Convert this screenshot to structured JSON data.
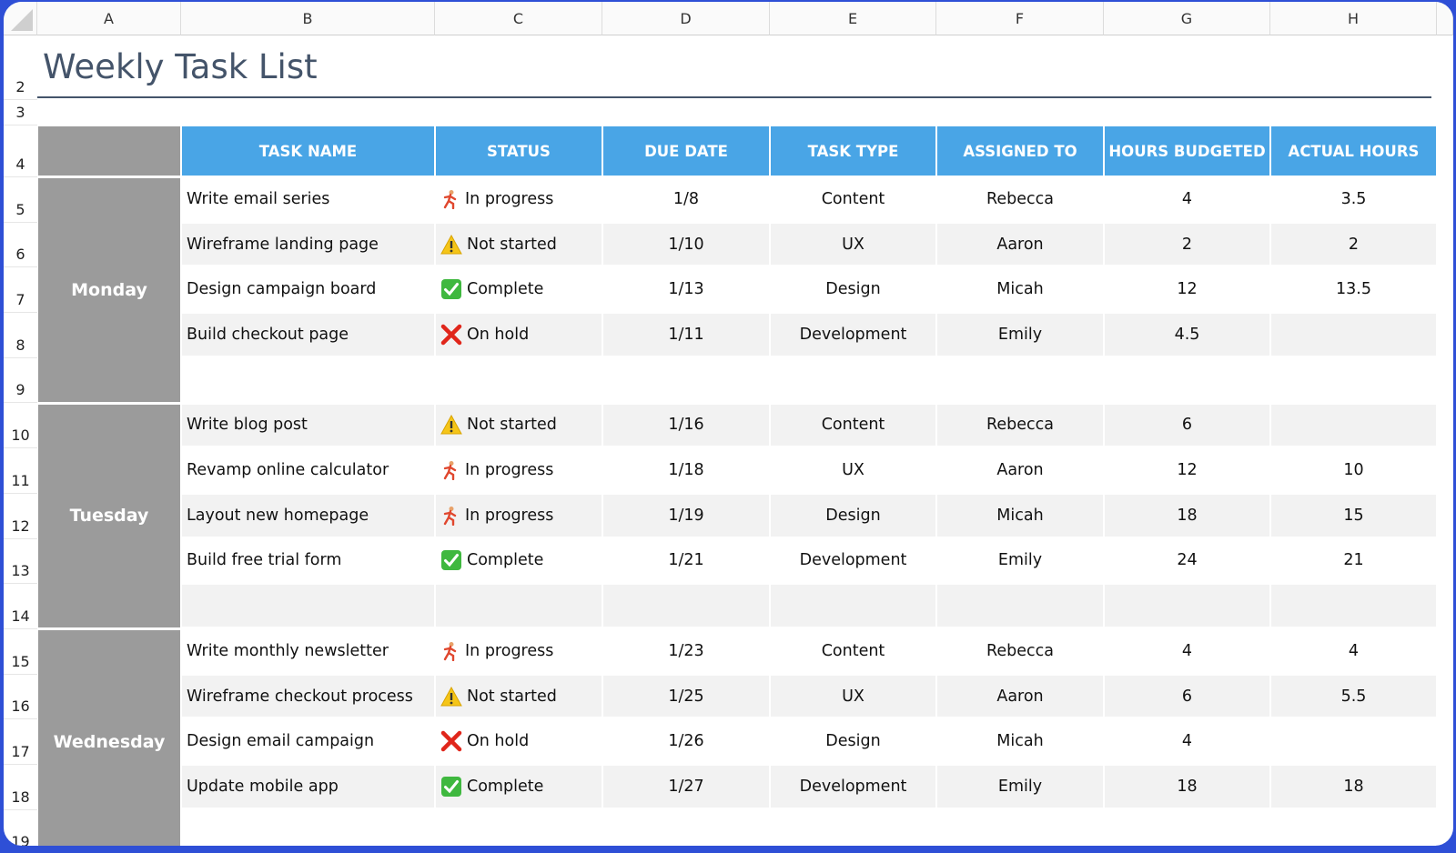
{
  "columns": [
    "A",
    "B",
    "C",
    "D",
    "E",
    "F",
    "G",
    "H"
  ],
  "row_numbers": [
    2,
    3,
    4,
    5,
    6,
    7,
    8,
    9,
    10,
    11,
    12,
    13,
    14,
    15,
    16,
    17,
    18,
    19
  ],
  "title": "Weekly Task List",
  "headers": [
    "TASK NAME",
    "STATUS",
    "DUE DATE",
    "TASK TYPE",
    "ASSIGNED TO",
    "HOURS BUDGETED",
    "ACTUAL HOURS"
  ],
  "days": [
    {
      "name": "Monday",
      "tasks": [
        [
          "Write email series",
          "In progress",
          "1/8",
          "Content",
          "Rebecca",
          4,
          3.5
        ],
        [
          "Wireframe landing page",
          "Not started",
          "1/10",
          "UX",
          "Aaron",
          2,
          2
        ],
        [
          "Design campaign board",
          "Complete",
          "1/13",
          "Design",
          "Micah",
          12,
          13.5
        ],
        [
          "Build checkout page",
          "On hold",
          "1/11",
          "Development",
          "Emily",
          4.5,
          null
        ]
      ]
    },
    {
      "name": "Tuesday",
      "tasks": [
        [
          "Write blog post",
          "Not started",
          "1/16",
          "Content",
          "Rebecca",
          6,
          null
        ],
        [
          "Revamp online calculator",
          "In progress",
          "1/18",
          "UX",
          "Aaron",
          12,
          10
        ],
        [
          "Layout new homepage",
          "In progress",
          "1/19",
          "Design",
          "Micah",
          18,
          15
        ],
        [
          "Build free trial form",
          "Complete",
          "1/21",
          "Development",
          "Emily",
          24,
          21
        ]
      ]
    },
    {
      "name": "Wednesday",
      "tasks": [
        [
          "Write monthly newsletter",
          "In progress",
          "1/23",
          "Content",
          "Rebecca",
          4,
          4
        ],
        [
          "Wireframe checkout process",
          "Not started",
          "1/25",
          "UX",
          "Aaron",
          6,
          5.5
        ],
        [
          "Design email campaign",
          "On hold",
          "1/26",
          "Design",
          "Micah",
          4,
          null
        ],
        [
          "Update mobile app",
          "Complete",
          "1/27",
          "Development",
          "Emily",
          18,
          18
        ]
      ]
    }
  ]
}
